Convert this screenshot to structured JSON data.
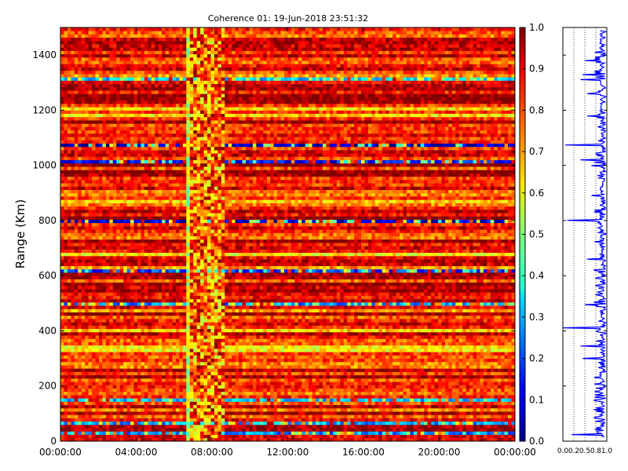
{
  "chart_data": [
    {
      "type": "heatmap",
      "title": "Coherence 01: 19-Jun-2018 23:51:32",
      "ylabel": "Range (Km)",
      "xlabel": "",
      "xlim": [
        "00:00:00",
        "24:00:00"
      ],
      "ylim": [
        0,
        1500
      ],
      "x_ticks": [
        "00:00:00",
        "04:00:00",
        "08:00:00",
        "12:00:00",
        "16:00:00",
        "20:00:00",
        "00:00:00"
      ],
      "y_ticks": [
        0,
        200,
        400,
        600,
        800,
        1000,
        1200,
        1400
      ],
      "colorbar": {
        "ticks": [
          0.0,
          0.1,
          0.2,
          0.3,
          0.4,
          0.5,
          0.6,
          0.7,
          0.8,
          0.9,
          1.0
        ],
        "labels": [
          "0.0",
          "0.1",
          "0.2",
          "0.3",
          "0.4",
          "0.5",
          "0.6",
          "0.7",
          "0.8",
          "0.9",
          "1.0"
        ],
        "range": [
          0.0,
          1.0
        ],
        "colormap": "jet"
      },
      "grid": false,
      "low_coherence_ranges_km": [
        25,
        65,
        150,
        300,
        330,
        345,
        495,
        620,
        660,
        800,
        1020,
        1075,
        1315,
        1440
      ],
      "disturbed_interval": [
        "06:45:00",
        "08:45:00"
      ]
    },
    {
      "type": "line",
      "title": "",
      "xlabel": "",
      "ylabel": "",
      "xlim": [
        0.0,
        1.0
      ],
      "ylim": [
        0,
        1500
      ],
      "x_tick_labels": [
        "0.0",
        "0.2",
        "0.5",
        "0.8",
        "1.0"
      ],
      "x_ticks": [
        0.0,
        0.25,
        0.5,
        0.75,
        1.0
      ],
      "grid": "vertical dotted",
      "series": [
        {
          "color": "#0000ff",
          "dips": [
            {
              "range_km": 25,
              "value": 0.2
            },
            {
              "range_km": 120,
              "value": 0.75
            },
            {
              "range_km": 300,
              "value": 0.45
            },
            {
              "range_km": 345,
              "value": 0.4
            },
            {
              "range_km": 410,
              "value": 0.0
            },
            {
              "range_km": 495,
              "value": 0.5
            },
            {
              "range_km": 620,
              "value": 0.7
            },
            {
              "range_km": 660,
              "value": 0.55
            },
            {
              "range_km": 800,
              "value": 0.1
            },
            {
              "range_km": 890,
              "value": 0.65
            },
            {
              "range_km": 1000,
              "value": 0.65
            },
            {
              "range_km": 1020,
              "value": 0.4
            },
            {
              "range_km": 1075,
              "value": 0.05
            },
            {
              "range_km": 1180,
              "value": 0.55
            },
            {
              "range_km": 1260,
              "value": 0.55
            },
            {
              "range_km": 1310,
              "value": 0.4
            },
            {
              "range_km": 1330,
              "value": 0.45
            },
            {
              "range_km": 1380,
              "value": 0.5
            }
          ]
        }
      ]
    }
  ]
}
